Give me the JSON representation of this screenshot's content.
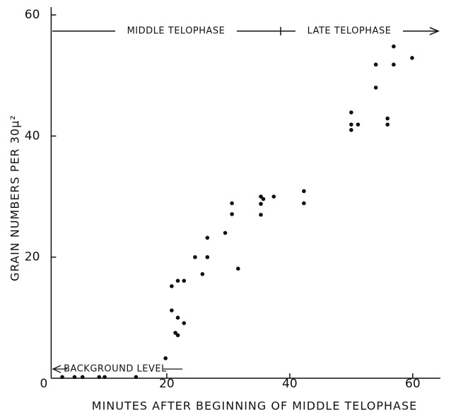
{
  "chart_data": {
    "type": "scatter",
    "xlabel": "MINUTES AFTER BEGINNING OF MIDDLE TELOPHASE",
    "ylabel": "GRAIN NUMBERS PER 30µ²",
    "annotations": [
      "MIDDLE TELOPHASE",
      "LATE TELOPHASE",
      "BACKGROUND LEVEL"
    ],
    "xlim": [
      1.2,
      64.5
    ],
    "ylim": [
      0,
      61.3
    ],
    "xticks": [
      0,
      20,
      40,
      60
    ],
    "yticks": [
      20,
      40,
      60
    ],
    "color": "#111111",
    "x": [
      3,
      5,
      6.3,
      9,
      9.9,
      15,
      19.8,
      20.8,
      20.8,
      21.4,
      21.8,
      21.8,
      21.8,
      22.8,
      22.8,
      24.6,
      25.8,
      26.6,
      26.6,
      29.5,
      30.6,
      30.6,
      31.6,
      35.3,
      35.7,
      35.3,
      35.3,
      37.4,
      42.3,
      42.3,
      50,
      50,
      50,
      51.1,
      54,
      54,
      55.9,
      55.9,
      56.9,
      56.9,
      59.9
    ],
    "values": [
      0.2,
      0.2,
      0.2,
      0.2,
      0.2,
      0.2,
      3.3,
      15.2,
      11.2,
      7.5,
      7.1,
      10,
      16.1,
      9.1,
      16.1,
      20,
      17.2,
      23.2,
      20,
      24,
      28.9,
      27.1,
      18.1,
      30,
      29.6,
      28.8,
      27,
      30,
      30.9,
      28.9,
      43.9,
      41.9,
      41,
      41.9,
      51.8,
      48,
      42.9,
      41.9,
      54.8,
      51.8,
      52.9
    ]
  }
}
